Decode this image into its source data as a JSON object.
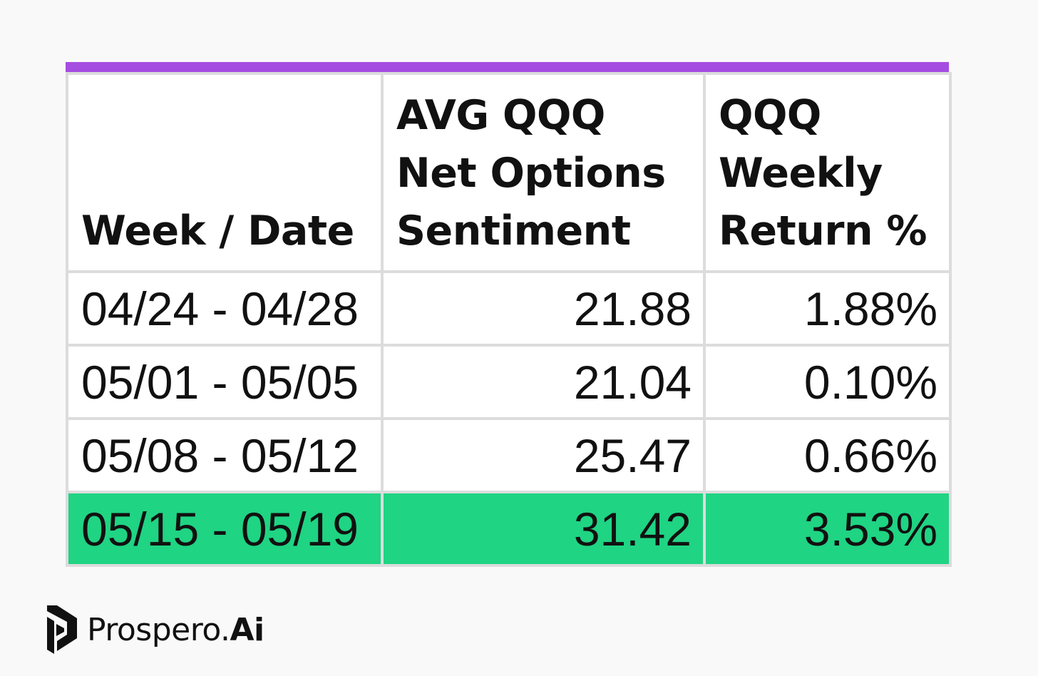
{
  "chart_data": {
    "type": "table",
    "columns": [
      "Week / Date",
      "AVG QQQ Net Options Sentiment",
      "QQQ Weekly Return %"
    ],
    "rows": [
      {
        "week": "04/24 - 04/28",
        "sentiment": "21.88",
        "return": "1.88%",
        "highlight": false
      },
      {
        "week": "05/01 - 05/05",
        "sentiment": "21.04",
        "return": "0.10%",
        "highlight": false
      },
      {
        "week": "05/08 - 05/12",
        "sentiment": "25.47",
        "return": "0.66%",
        "highlight": false
      },
      {
        "week": "05/15 - 05/19",
        "sentiment": "31.42",
        "return": "3.53%",
        "highlight": true
      }
    ]
  },
  "brand": {
    "name_main": "Prospero.",
    "name_suffix": "Ai"
  },
  "colors": {
    "accent_bar": "#a54de0",
    "highlight_row": "#1fd483",
    "grid": "#dcdcdc"
  }
}
